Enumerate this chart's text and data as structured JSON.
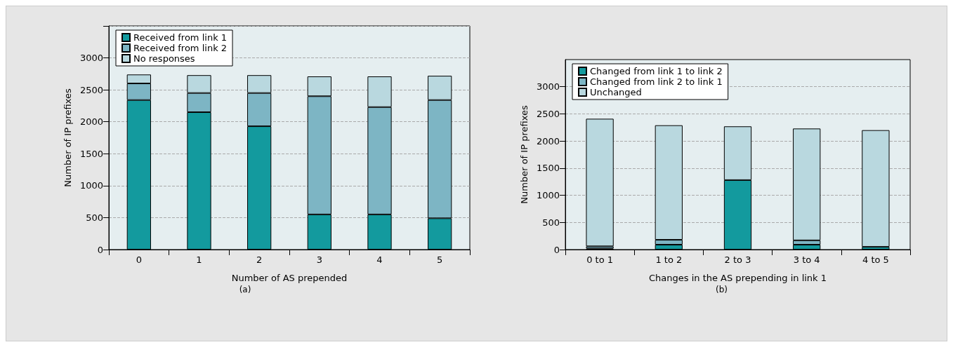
{
  "chart_data": [
    {
      "type": "bar",
      "xlabel": "Number of AS prepended",
      "ylabel": "Number of IP prefixes",
      "categories": [
        "0",
        "1",
        "2",
        "3",
        "4",
        "5"
      ],
      "stacked": true,
      "series": [
        {
          "name": "Received from link 1",
          "color": "#139a9e",
          "values": [
            2340,
            2150,
            1930,
            550,
            550,
            490
          ]
        },
        {
          "name": "Received from link 2",
          "color": "#7db5c4",
          "values": [
            260,
            300,
            520,
            1850,
            1680,
            1850
          ]
        },
        {
          "name": "No responses",
          "color": "#b9d8df",
          "values": [
            140,
            280,
            280,
            310,
            480,
            380
          ]
        }
      ],
      "ylim": [
        0,
        3500
      ],
      "yticks": [
        0,
        500,
        1000,
        1500,
        2000,
        2500,
        3000,
        {
          "value": 3500,
          "label": null
        }
      ],
      "grid": "y",
      "legend": "top left",
      "annotations": [
        "(a)"
      ]
    },
    {
      "type": "bar",
      "xlabel": "Changes in the AS prepending in link 1",
      "ylabel": "Number of IP prefixes",
      "categories": [
        "0 to 1",
        "1 to 2",
        "2 to 3",
        "3 to 4",
        "4 to 5"
      ],
      "stacked": true,
      "series": [
        {
          "name": "Changed from link 1 to link 2",
          "color": "#139a9e",
          "values": [
            20,
            90,
            1280,
            90,
            50
          ]
        },
        {
          "name": "Changed from link 2 to link 1",
          "color": "#7db5c4",
          "values": [
            40,
            90,
            0,
            80,
            0
          ]
        },
        {
          "name": "Unchanged",
          "color": "#b9d8df",
          "values": [
            2350,
            2110,
            990,
            2060,
            2150
          ]
        }
      ],
      "ylim": [
        0,
        3500
      ],
      "yticks": [
        0,
        500,
        1000,
        1500,
        2000,
        2500,
        3000
      ],
      "grid": "y",
      "legend": "top left",
      "annotations": [
        "(b)"
      ]
    }
  ]
}
